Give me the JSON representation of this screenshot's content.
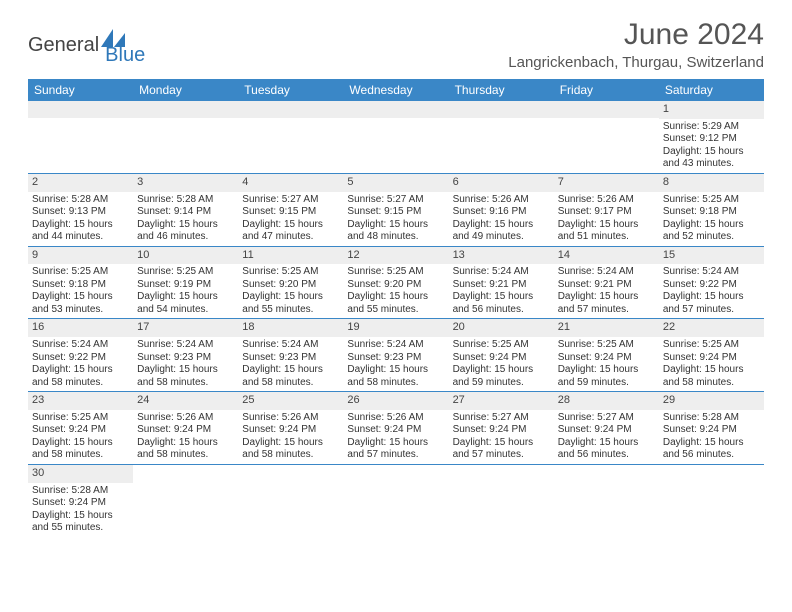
{
  "logo": {
    "part1": "General",
    "part2": "Blue",
    "sail_color": "#2f78b9"
  },
  "title": "June 2024",
  "location": "Langrickenbach, Thurgau, Switzerland",
  "day_headers": [
    "Sunday",
    "Monday",
    "Tuesday",
    "Wednesday",
    "Thursday",
    "Friday",
    "Saturday"
  ],
  "colors": {
    "header_bg": "#3a87c7",
    "header_text": "#ffffff",
    "daynum_bg": "#eeeeee",
    "cell_border": "#3a87c7"
  },
  "weeks": [
    [
      null,
      null,
      null,
      null,
      null,
      null,
      {
        "n": "1",
        "sr": "Sunrise: 5:29 AM",
        "ss": "Sunset: 9:12 PM",
        "dl1": "Daylight: 15 hours",
        "dl2": "and 43 minutes."
      }
    ],
    [
      {
        "n": "2",
        "sr": "Sunrise: 5:28 AM",
        "ss": "Sunset: 9:13 PM",
        "dl1": "Daylight: 15 hours",
        "dl2": "and 44 minutes."
      },
      {
        "n": "3",
        "sr": "Sunrise: 5:28 AM",
        "ss": "Sunset: 9:14 PM",
        "dl1": "Daylight: 15 hours",
        "dl2": "and 46 minutes."
      },
      {
        "n": "4",
        "sr": "Sunrise: 5:27 AM",
        "ss": "Sunset: 9:15 PM",
        "dl1": "Daylight: 15 hours",
        "dl2": "and 47 minutes."
      },
      {
        "n": "5",
        "sr": "Sunrise: 5:27 AM",
        "ss": "Sunset: 9:15 PM",
        "dl1": "Daylight: 15 hours",
        "dl2": "and 48 minutes."
      },
      {
        "n": "6",
        "sr": "Sunrise: 5:26 AM",
        "ss": "Sunset: 9:16 PM",
        "dl1": "Daylight: 15 hours",
        "dl2": "and 49 minutes."
      },
      {
        "n": "7",
        "sr": "Sunrise: 5:26 AM",
        "ss": "Sunset: 9:17 PM",
        "dl1": "Daylight: 15 hours",
        "dl2": "and 51 minutes."
      },
      {
        "n": "8",
        "sr": "Sunrise: 5:25 AM",
        "ss": "Sunset: 9:18 PM",
        "dl1": "Daylight: 15 hours",
        "dl2": "and 52 minutes."
      }
    ],
    [
      {
        "n": "9",
        "sr": "Sunrise: 5:25 AM",
        "ss": "Sunset: 9:18 PM",
        "dl1": "Daylight: 15 hours",
        "dl2": "and 53 minutes."
      },
      {
        "n": "10",
        "sr": "Sunrise: 5:25 AM",
        "ss": "Sunset: 9:19 PM",
        "dl1": "Daylight: 15 hours",
        "dl2": "and 54 minutes."
      },
      {
        "n": "11",
        "sr": "Sunrise: 5:25 AM",
        "ss": "Sunset: 9:20 PM",
        "dl1": "Daylight: 15 hours",
        "dl2": "and 55 minutes."
      },
      {
        "n": "12",
        "sr": "Sunrise: 5:25 AM",
        "ss": "Sunset: 9:20 PM",
        "dl1": "Daylight: 15 hours",
        "dl2": "and 55 minutes."
      },
      {
        "n": "13",
        "sr": "Sunrise: 5:24 AM",
        "ss": "Sunset: 9:21 PM",
        "dl1": "Daylight: 15 hours",
        "dl2": "and 56 minutes."
      },
      {
        "n": "14",
        "sr": "Sunrise: 5:24 AM",
        "ss": "Sunset: 9:21 PM",
        "dl1": "Daylight: 15 hours",
        "dl2": "and 57 minutes."
      },
      {
        "n": "15",
        "sr": "Sunrise: 5:24 AM",
        "ss": "Sunset: 9:22 PM",
        "dl1": "Daylight: 15 hours",
        "dl2": "and 57 minutes."
      }
    ],
    [
      {
        "n": "16",
        "sr": "Sunrise: 5:24 AM",
        "ss": "Sunset: 9:22 PM",
        "dl1": "Daylight: 15 hours",
        "dl2": "and 58 minutes."
      },
      {
        "n": "17",
        "sr": "Sunrise: 5:24 AM",
        "ss": "Sunset: 9:23 PM",
        "dl1": "Daylight: 15 hours",
        "dl2": "and 58 minutes."
      },
      {
        "n": "18",
        "sr": "Sunrise: 5:24 AM",
        "ss": "Sunset: 9:23 PM",
        "dl1": "Daylight: 15 hours",
        "dl2": "and 58 minutes."
      },
      {
        "n": "19",
        "sr": "Sunrise: 5:24 AM",
        "ss": "Sunset: 9:23 PM",
        "dl1": "Daylight: 15 hours",
        "dl2": "and 58 minutes."
      },
      {
        "n": "20",
        "sr": "Sunrise: 5:25 AM",
        "ss": "Sunset: 9:24 PM",
        "dl1": "Daylight: 15 hours",
        "dl2": "and 59 minutes."
      },
      {
        "n": "21",
        "sr": "Sunrise: 5:25 AM",
        "ss": "Sunset: 9:24 PM",
        "dl1": "Daylight: 15 hours",
        "dl2": "and 59 minutes."
      },
      {
        "n": "22",
        "sr": "Sunrise: 5:25 AM",
        "ss": "Sunset: 9:24 PM",
        "dl1": "Daylight: 15 hours",
        "dl2": "and 58 minutes."
      }
    ],
    [
      {
        "n": "23",
        "sr": "Sunrise: 5:25 AM",
        "ss": "Sunset: 9:24 PM",
        "dl1": "Daylight: 15 hours",
        "dl2": "and 58 minutes."
      },
      {
        "n": "24",
        "sr": "Sunrise: 5:26 AM",
        "ss": "Sunset: 9:24 PM",
        "dl1": "Daylight: 15 hours",
        "dl2": "and 58 minutes."
      },
      {
        "n": "25",
        "sr": "Sunrise: 5:26 AM",
        "ss": "Sunset: 9:24 PM",
        "dl1": "Daylight: 15 hours",
        "dl2": "and 58 minutes."
      },
      {
        "n": "26",
        "sr": "Sunrise: 5:26 AM",
        "ss": "Sunset: 9:24 PM",
        "dl1": "Daylight: 15 hours",
        "dl2": "and 57 minutes."
      },
      {
        "n": "27",
        "sr": "Sunrise: 5:27 AM",
        "ss": "Sunset: 9:24 PM",
        "dl1": "Daylight: 15 hours",
        "dl2": "and 57 minutes."
      },
      {
        "n": "28",
        "sr": "Sunrise: 5:27 AM",
        "ss": "Sunset: 9:24 PM",
        "dl1": "Daylight: 15 hours",
        "dl2": "and 56 minutes."
      },
      {
        "n": "29",
        "sr": "Sunrise: 5:28 AM",
        "ss": "Sunset: 9:24 PM",
        "dl1": "Daylight: 15 hours",
        "dl2": "and 56 minutes."
      }
    ],
    [
      {
        "n": "30",
        "sr": "Sunrise: 5:28 AM",
        "ss": "Sunset: 9:24 PM",
        "dl1": "Daylight: 15 hours",
        "dl2": "and 55 minutes."
      },
      null,
      null,
      null,
      null,
      null,
      null
    ]
  ]
}
